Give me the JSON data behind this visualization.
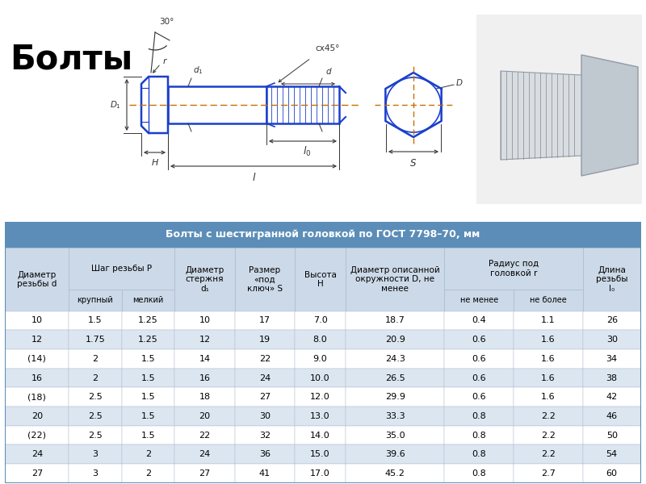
{
  "title": "Болты",
  "table_title": "Болты с шестигранной головкой по ГОСТ 7798–70, мм",
  "rows": [
    [
      "10",
      "1.5",
      "1.25",
      "10",
      "17",
      "7.0",
      "18.7",
      "0.4",
      "1.1",
      "26"
    ],
    [
      "12",
      "1.75",
      "1.25",
      "12",
      "19",
      "8.0",
      "20.9",
      "0.6",
      "1.6",
      "30"
    ],
    [
      "(14)",
      "2",
      "1.5",
      "14",
      "22",
      "9.0",
      "24.3",
      "0.6",
      "1.6",
      "34"
    ],
    [
      "16",
      "2",
      "1.5",
      "16",
      "24",
      "10.0",
      "26.5",
      "0.6",
      "1.6",
      "38"
    ],
    [
      "(18)",
      "2.5",
      "1.5",
      "18",
      "27",
      "12.0",
      "29.9",
      "0.6",
      "1.6",
      "42"
    ],
    [
      "20",
      "2.5",
      "1.5",
      "20",
      "30",
      "13.0",
      "33.3",
      "0.8",
      "2.2",
      "46"
    ],
    [
      "(22)",
      "2.5",
      "1.5",
      "22",
      "32",
      "14.0",
      "35.0",
      "0.8",
      "2.2",
      "50"
    ],
    [
      "24",
      "3",
      "2",
      "24",
      "36",
      "15.0",
      "39.6",
      "0.8",
      "2.2",
      "54"
    ],
    [
      "27",
      "3",
      "2",
      "27",
      "41",
      "17.0",
      "45.2",
      "0.8",
      "2.7",
      "60"
    ]
  ],
  "header_bg": "#5b8db8",
  "header_text": "#ffffff",
  "subheader_bg": "#ccd9e8",
  "row_white_bg": "#ffffff",
  "row_blue_bg": "#dce6f1",
  "table_border": "#5b8db8",
  "cell_border": "#aabbcc",
  "fig_bg": "#ffffff",
  "blue_line": "#1a3fcc",
  "dim_color": "#333333",
  "center_color": "#c87000",
  "title_fontsize": 30,
  "table_title_fontsize": 9,
  "cell_fontsize": 8,
  "header_fontsize": 7.5
}
